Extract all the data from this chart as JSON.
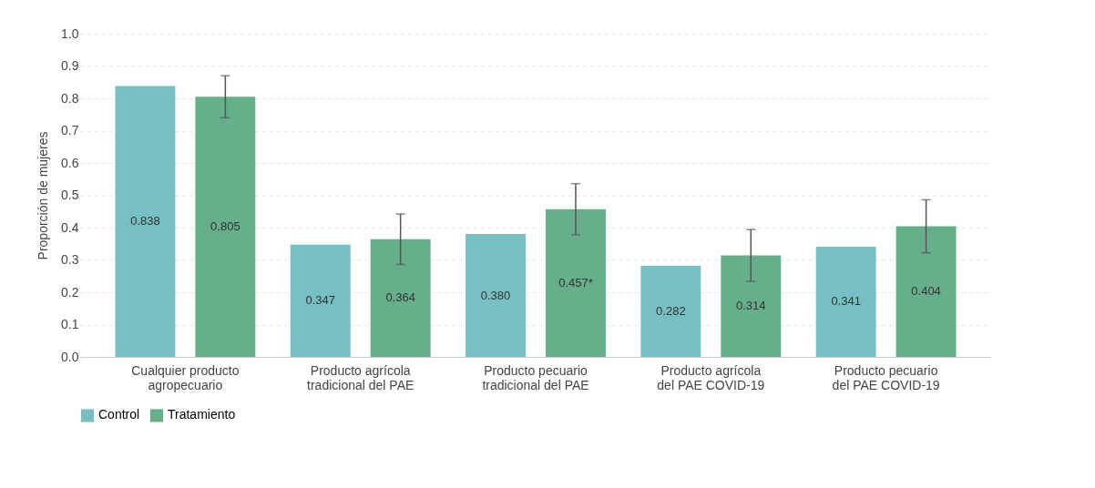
{
  "chart_data": {
    "type": "bar",
    "ylabel": "Proporción de mujeres",
    "categories": [
      "Cualquier producto agropecuario",
      "Producto agrícola tradicional del PAE",
      "Producto pecuario tradicional del PAE",
      "Producto agrícola del PAE COVID-19",
      "Producto pecuario del PAE COVID-19"
    ],
    "series": [
      {
        "name": "Control",
        "color": "#76bfc2",
        "values": [
          0.838,
          0.347,
          0.38,
          0.282,
          0.341
        ],
        "value_labels": [
          "0.838",
          "0.347",
          "0.380",
          "0.282",
          "0.341"
        ]
      },
      {
        "name": "Tratamiento",
        "color": "#67ae8a",
        "values": [
          0.805,
          0.364,
          0.457,
          0.314,
          0.404
        ],
        "value_labels": [
          "0.805",
          "0.364",
          "0.457*",
          "0.314",
          "0.404"
        ],
        "errors": [
          0.065,
          0.078,
          0.079,
          0.08,
          0.082
        ]
      }
    ],
    "ylim": [
      0,
      1.0
    ],
    "yticks": [
      {
        "value": 0,
        "label": "0.0"
      },
      0.1,
      0.2,
      0.3,
      0.4,
      0.5,
      0.6,
      0.7,
      0.8,
      0.9,
      {
        "value": 1.0,
        "label": "1.0"
      }
    ],
    "grid": "y",
    "legend": "bottom"
  }
}
